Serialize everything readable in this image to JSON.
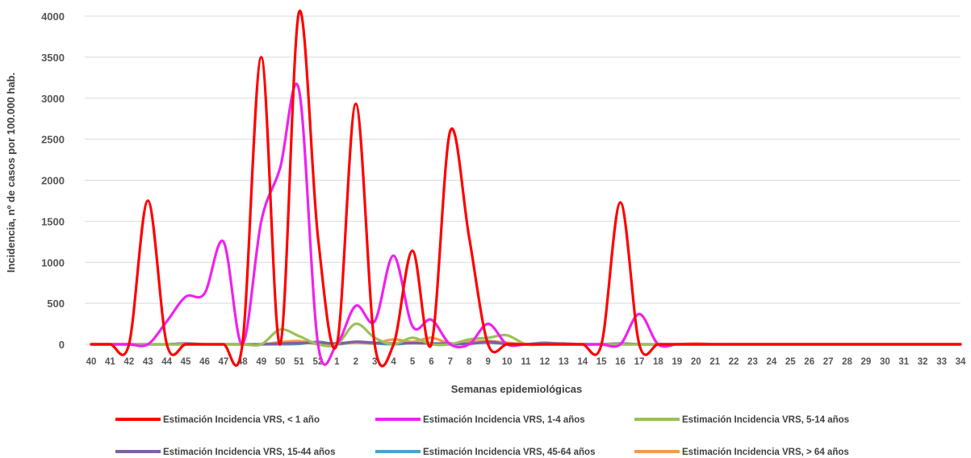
{
  "chart_data": {
    "type": "line",
    "xlabel": "Semanas epidemiológicas",
    "ylabel": "Incidencia, nº de casos por 100.000 hab.",
    "ylim": [
      0,
      4000
    ],
    "yticks": [
      "0",
      "500",
      "1000",
      "1500",
      "2000",
      "2500",
      "3000",
      "3500",
      "4000"
    ],
    "grid": "horizontal",
    "legend_position": "bottom",
    "categories": [
      "40",
      "41",
      "42",
      "43",
      "44",
      "45",
      "46",
      "47",
      "48",
      "49",
      "50",
      "51",
      "52",
      "1",
      "2",
      "3",
      "4",
      "5",
      "6",
      "7",
      "8",
      "9",
      "10",
      "11",
      "12",
      "13",
      "14",
      "15",
      "16",
      "17",
      "18",
      "19",
      "20",
      "21",
      "22",
      "23",
      "24",
      "25",
      "26",
      "27",
      "28",
      "29",
      "30",
      "31",
      "32",
      "33",
      "34"
    ],
    "series": [
      {
        "name": "Estimación Incidencia VRS, < 1 año",
        "color": "#ff0000",
        "values": [
          0,
          0,
          0,
          1750,
          0,
          0,
          0,
          0,
          0,
          3500,
          0,
          4050,
          1300,
          0,
          2930,
          0,
          0,
          1140,
          0,
          2600,
          1300,
          0,
          0,
          0,
          0,
          0,
          0,
          0,
          1730,
          0,
          0,
          0,
          0,
          0,
          0,
          0,
          0,
          0,
          0,
          0,
          0,
          0,
          0,
          0,
          0,
          0,
          0
        ]
      },
      {
        "name": "Estimación Incidencia VRS, 1-4 años",
        "color": "#ee22ee",
        "values": [
          0,
          0,
          0,
          0,
          280,
          580,
          620,
          1250,
          0,
          1500,
          2150,
          3100,
          0,
          0,
          470,
          280,
          1080,
          220,
          300,
          0,
          0,
          250,
          0,
          0,
          0,
          0,
          0,
          0,
          0,
          370,
          0,
          0,
          0,
          0,
          0,
          0,
          0,
          0,
          0,
          0,
          0,
          0,
          0,
          0,
          0,
          0,
          0
        ]
      },
      {
        "name": "Estimación Incidencia VRS, 5-14 años",
        "color": "#99c15a",
        "values": [
          0,
          0,
          0,
          0,
          0,
          0,
          0,
          0,
          0,
          0,
          180,
          100,
          0,
          0,
          250,
          80,
          0,
          80,
          0,
          0,
          60,
          80,
          110,
          0,
          0,
          0,
          0,
          0,
          0,
          0,
          0,
          0,
          0,
          0,
          0,
          0,
          0,
          0,
          0,
          0,
          0,
          0,
          0,
          0,
          0,
          0,
          0
        ]
      },
      {
        "name": "Estimación Incidencia VRS, 15-44 años",
        "color": "#7f60a0",
        "values": [
          0,
          0,
          0,
          0,
          0,
          10,
          0,
          0,
          0,
          0,
          10,
          15,
          20,
          10,
          30,
          20,
          10,
          15,
          10,
          10,
          5,
          30,
          5,
          0,
          10,
          10,
          0,
          0,
          10,
          0,
          0,
          0,
          0,
          0,
          0,
          0,
          0,
          0,
          0,
          0,
          0,
          0,
          0,
          0,
          0,
          0,
          0
        ]
      },
      {
        "name": "Estimación Incidencia VRS, 45-64 años",
        "color": "#4aa3c8",
        "values": [
          0,
          0,
          0,
          0,
          0,
          0,
          0,
          0,
          0,
          0,
          0,
          5,
          30,
          0,
          30,
          10,
          0,
          15,
          10,
          0,
          10,
          20,
          5,
          0,
          20,
          0,
          0,
          0,
          0,
          0,
          0,
          0,
          0,
          0,
          0,
          0,
          0,
          0,
          0,
          0,
          0,
          0,
          0,
          0,
          0,
          0,
          0
        ]
      },
      {
        "name": "Estimación Incidencia VRS, > 64 años",
        "color": "#f59a4a",
        "values": [
          0,
          0,
          0,
          0,
          0,
          0,
          0,
          0,
          0,
          0,
          25,
          40,
          0,
          0,
          20,
          10,
          60,
          30,
          80,
          10,
          30,
          40,
          20,
          0,
          0,
          0,
          0,
          0,
          0,
          0,
          0,
          0,
          10,
          0,
          0,
          0,
          0,
          0,
          0,
          0,
          0,
          0,
          0,
          0,
          0,
          0,
          0
        ]
      }
    ]
  }
}
